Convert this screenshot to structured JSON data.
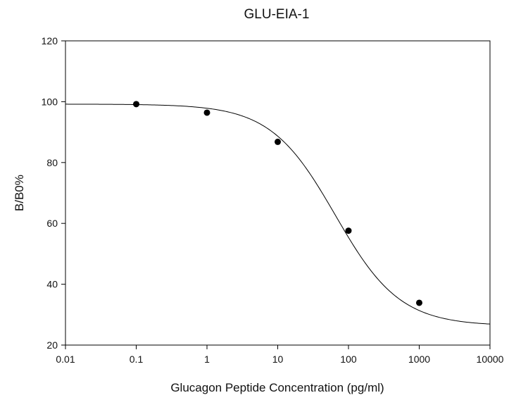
{
  "chart_data": {
    "type": "scatter",
    "title": "GLU-EIA-1",
    "xlabel": "Glucagon Peptide Concentration (pg/ml)",
    "ylabel": "B/B0%",
    "xscale": "log",
    "xlim": [
      0.01,
      10000
    ],
    "ylim": [
      20,
      120
    ],
    "xticks": [
      "0.01",
      "0.1",
      "1",
      "10",
      "100",
      "1000",
      "10000"
    ],
    "yticks": [
      "20",
      "40",
      "60",
      "80",
      "100",
      "120"
    ],
    "grid": false,
    "legend": "none",
    "series": [
      {
        "marker": "filled-circle",
        "x": [
          0.1,
          1,
          10,
          100,
          1000
        ],
        "y": [
          99.2,
          96.4,
          86.8,
          57.6,
          33.9
        ]
      }
    ],
    "fit_curve": {
      "model": "4-parameter logistic",
      "top": 99.2,
      "bottom": 26.3,
      "ec50": 65,
      "hill": 0.95
    },
    "colors": {
      "line": "#000000",
      "marker": "#000000",
      "background": "#ffffff"
    }
  }
}
